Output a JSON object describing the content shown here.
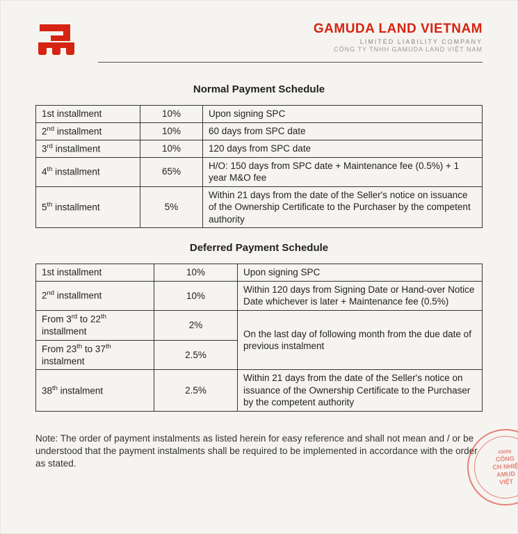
{
  "header": {
    "company_name": "GAMUDA LAND VIETNAM",
    "subtitle_en": "LIMITED LIABILITY COMPANY",
    "subtitle_vn": "CÔNG TY TNHH GAMUDA LAND VIỆT NAM",
    "logo_color": "#d62412"
  },
  "colors": {
    "accent": "#d62412",
    "text": "#222222",
    "border": "#333333",
    "page_bg": "#f6f4f0"
  },
  "normal": {
    "title": "Normal Payment Schedule",
    "rows": [
      {
        "inst_html": "1st installment",
        "pct": "10%",
        "desc": "Upon signing SPC"
      },
      {
        "inst_html": "2<sup>nd</sup> installment",
        "pct": "10%",
        "desc": "60 days from SPC date"
      },
      {
        "inst_html": "3<sup>rd</sup> installment",
        "pct": "10%",
        "desc": "120 days from SPC date"
      },
      {
        "inst_html": "4<sup>th</sup> installment",
        "pct": "65%",
        "desc": "H/O: 150 days from SPC date + Maintenance fee (0.5%) + 1 year M&O fee"
      },
      {
        "inst_html": "5<sup>th</sup> installment",
        "pct": "5%",
        "desc": "Within 21 days from the date of the Seller's notice on issuance of the Ownership Certificate to the Purchaser by the competent authority"
      }
    ]
  },
  "deferred": {
    "title": "Deferred Payment Schedule",
    "rows": [
      {
        "inst_html": "1st installment",
        "pct": "10%",
        "desc": "Upon signing SPC"
      },
      {
        "inst_html": "2<sup>nd</sup> installment",
        "pct": "10%",
        "desc": "Within 120 days from Signing Date or Hand-over Notice Date whichever is later + Maintenance fee (0.5%)"
      },
      {
        "inst_html": "From 3<sup>rd</sup> to 22<sup>th</sup> installment",
        "pct": "2%",
        "desc_merge_below": true,
        "desc": "On the last day of following month from the due date of previous instalment"
      },
      {
        "inst_html": "From 23<sup>th</sup> to 37<sup>th</sup> instalment",
        "pct": "2.5%",
        "desc_merged": true
      },
      {
        "inst_html": "38<sup>th</sup> instalment",
        "pct": "2.5%",
        "desc": "Within 21 days from the date of the Seller's notice on issuance of the Ownership Certificate to the Purchaser by the competent authority"
      }
    ]
  },
  "note": "Note: The order of payment instalments as listed herein for easy reference and shall not mean and / or be understood that the payment instalments shall be required to be implemented in accordance with the order as stated.",
  "stamp": {
    "line1": "CÔNG",
    "line2": "CH NHIỆ",
    "line3": "AMUD",
    "line4": "VIỆT",
    "top_num": "43000"
  }
}
